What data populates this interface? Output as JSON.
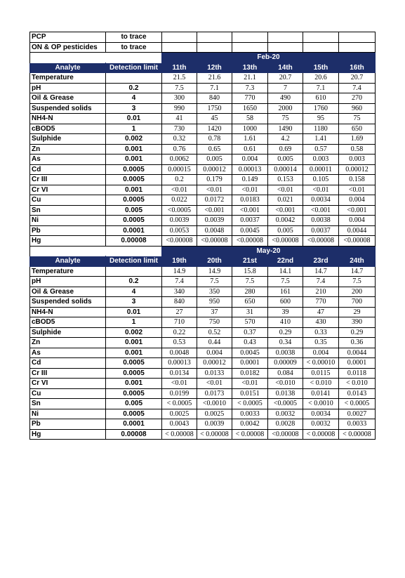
{
  "top_rows": [
    {
      "analyte": "PCP",
      "limit": "to trace"
    },
    {
      "analyte": "ON & OP pesticides",
      "limit": "to trace"
    }
  ],
  "sections": [
    {
      "title": "Feb-20",
      "header": {
        "analyte": "Analyte",
        "limit": "Detection limit",
        "days": [
          "11th",
          "12th",
          "13th",
          "14th",
          "15th",
          "16th"
        ]
      },
      "rows": [
        {
          "analyte": "Temperature",
          "limit": "",
          "values": [
            "21.5",
            "21.6",
            "21.1",
            "20.7",
            "20.6",
            "20.7"
          ]
        },
        {
          "analyte": "pH",
          "limit": "0.2",
          "values": [
            "7.5",
            "7.1",
            "7.3",
            "7",
            "7.1",
            "7.4"
          ]
        },
        {
          "analyte": "Oil & Grease",
          "limit": "4",
          "values": [
            "300",
            "840",
            "770",
            "490",
            "610",
            "270"
          ]
        },
        {
          "analyte": "Suspended solids",
          "limit": "3",
          "values": [
            "990",
            "1750",
            "1650",
            "2000",
            "1760",
            "960"
          ]
        },
        {
          "analyte": "NH4-N",
          "limit": "0.01",
          "values": [
            "41",
            "45",
            "58",
            "75",
            "95",
            "75"
          ]
        },
        {
          "analyte": "cBOD5",
          "limit": "1",
          "values": [
            "730",
            "1420",
            "1000",
            "1490",
            "1180",
            "650"
          ]
        },
        {
          "analyte": "Sulphide",
          "limit": "0.002",
          "values": [
            "0.32",
            "0.78",
            "1.61",
            "4.2",
            "1.41",
            "1.69"
          ]
        },
        {
          "analyte": "Zn",
          "limit": "0.001",
          "values": [
            "0.76",
            "0.65",
            "0.61",
            "0.69",
            "0.57",
            "0.58"
          ]
        },
        {
          "analyte": "As",
          "limit": "0.001",
          "values": [
            "0.0062",
            "0.005",
            "0.004",
            "0.005",
            "0.003",
            "0.003"
          ]
        },
        {
          "analyte": "Cd",
          "limit": "0.0005",
          "values": [
            "0.00015",
            "0.00012",
            "0.00013",
            "0.00014",
            "0.00011",
            "0.00012"
          ]
        },
        {
          "analyte": "Cr III",
          "limit": "0.0005",
          "values": [
            "0.2",
            "0.179",
            "0.149",
            "0.153",
            "0.105",
            "0.158"
          ]
        },
        {
          "analyte": "Cr VI",
          "limit": "0.001",
          "values": [
            "<0.01",
            "<0.01",
            "<0.01",
            "<0.01",
            "<0.01",
            "<0.01"
          ]
        },
        {
          "analyte": "Cu",
          "limit": "0.0005",
          "values": [
            "0.022",
            "0.0172",
            "0.0183",
            "0.021",
            "0.0034",
            "0.004"
          ]
        },
        {
          "analyte": "Sn",
          "limit": "0.005",
          "values": [
            "<0.0005",
            "<0.001",
            "<0.001",
            "<0.001",
            "<0.001",
            "<0.001"
          ]
        },
        {
          "analyte": "Ni",
          "limit": "0.0005",
          "values": [
            "0.0039",
            "0.0039",
            "0.0037",
            "0.0042",
            "0.0038",
            "0.004"
          ]
        },
        {
          "analyte": "Pb",
          "limit": "0.0001",
          "values": [
            "0.0053",
            "0.0048",
            "0.0045",
            "0.005",
            "0.0037",
            "0.0044"
          ]
        },
        {
          "analyte": "Hg",
          "limit": "0.00008",
          "values": [
            "<0.00008",
            "<0.00008",
            "<0.00008",
            "<0.00008",
            "<0.00008",
            "<0.00008"
          ]
        }
      ]
    },
    {
      "title": "May-20",
      "header": {
        "analyte": "Analyte",
        "limit": "Detection limit",
        "days": [
          "19th",
          "20th",
          "21st",
          "22nd",
          "23rd",
          "24th"
        ]
      },
      "rows": [
        {
          "analyte": "Temperature",
          "limit": "",
          "values": [
            "14.9",
            "14.9",
            "15.8",
            "14.1",
            "14.7",
            "14.7"
          ]
        },
        {
          "analyte": "pH",
          "limit": "0.2",
          "values": [
            "7.4",
            "7.5",
            "7.5",
            "7.5",
            "7.4",
            "7.5"
          ]
        },
        {
          "analyte": "Oil & Grease",
          "limit": "4",
          "values": [
            "340",
            "350",
            "280",
            "161",
            "210",
            "200"
          ]
        },
        {
          "analyte": "Suspended solids",
          "limit": "3",
          "values": [
            "840",
            "950",
            "650",
            "600",
            "770",
            "700"
          ]
        },
        {
          "analyte": "NH4-N",
          "limit": "0.01",
          "values": [
            "27",
            "37",
            "31",
            "39",
            "47",
            "29"
          ]
        },
        {
          "analyte": "cBOD5",
          "limit": "1",
          "values": [
            "710",
            "750",
            "570",
            "410",
            "430",
            "390"
          ]
        },
        {
          "analyte": "Sulphide",
          "limit": "0.002",
          "values": [
            "0.22",
            "0.52",
            "0.37",
            "0.29",
            "0.33",
            "0.29"
          ]
        },
        {
          "analyte": "Zn",
          "limit": "0.001",
          "values": [
            "0.53",
            "0.44",
            "0.43",
            "0.34",
            "0.35",
            "0.36"
          ]
        },
        {
          "analyte": "As",
          "limit": "0.001",
          "values": [
            "0.0048",
            "0.004",
            "0.0045",
            "0.0038",
            "0.004",
            "0.0044"
          ]
        },
        {
          "analyte": "Cd",
          "limit": "0.0005",
          "values": [
            "0.00013",
            "0.00012",
            "0.0001",
            "0.00009",
            "< 0.00010",
            "0.0001"
          ]
        },
        {
          "analyte": "Cr III",
          "limit": "0.0005",
          "values": [
            "0.0134",
            "0.0133",
            "0.0182",
            "0.084",
            "0.0115",
            "0.0118"
          ]
        },
        {
          "analyte": "Cr VI",
          "limit": "0.001",
          "values": [
            "<0.01",
            "<0.01",
            "<0.01",
            "<0.010",
            "< 0.010",
            "< 0.010"
          ]
        },
        {
          "analyte": "Cu",
          "limit": "0.0005",
          "values": [
            "0.0199",
            "0.0173",
            "0.0151",
            "0.0138",
            "0.0141",
            "0.0143"
          ]
        },
        {
          "analyte": "Sn",
          "limit": "0.005",
          "values": [
            "< 0.0005",
            "<0.0010",
            "< 0.0005",
            "<0.0005",
            "< 0.0010",
            "< 0.0005"
          ]
        },
        {
          "analyte": "Ni",
          "limit": "0.0005",
          "values": [
            "0.0025",
            "0.0025",
            "0.0033",
            "0.0032",
            "0.0034",
            "0.0027"
          ]
        },
        {
          "analyte": "Pb",
          "limit": "0.0001",
          "values": [
            "0.0043",
            "0.0039",
            "0.0042",
            "0.0028",
            "0.0032",
            "0.0033"
          ]
        },
        {
          "analyte": "Hg",
          "limit": "0.00008",
          "values": [
            "< 0.00008",
            "< 0.00008",
            "< 0.00008",
            "<0.00008",
            "< 0.00008",
            "< 0.00008"
          ]
        }
      ]
    }
  ]
}
